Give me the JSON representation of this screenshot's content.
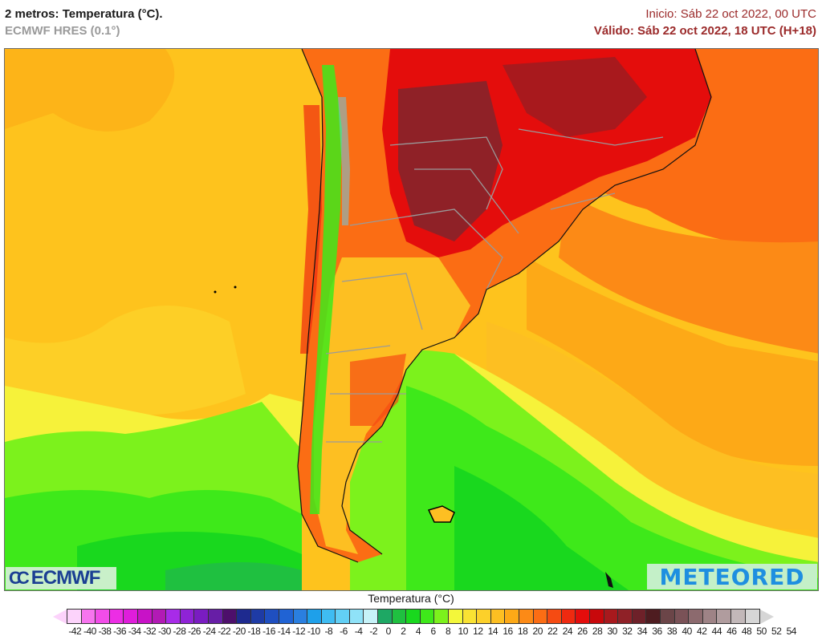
{
  "header": {
    "title": "2 metros: Temperatura (°C).",
    "model": "ECMWF HRES (0.1°)",
    "init": "Inicio: Sáb 22 oct 2022, 00 UTC",
    "valid": "Válido: Sáb 22 oct 2022, 18 UTC (H+18)"
  },
  "map": {
    "region": "South America (southern cone)",
    "variable": "2 m temperature",
    "units": "°C",
    "background_ocean_color": "#ffc21a"
  },
  "logos": {
    "ecmwf_symbol": "CC",
    "ecmwf": "ECMWF",
    "meteored": "METEORED"
  },
  "legend": {
    "title": "Temperatura (°C)",
    "ticks": [
      "-42",
      "-40",
      "-38",
      "-36",
      "-34",
      "-32",
      "-30",
      "-28",
      "-26",
      "-24",
      "-22",
      "-20",
      "-18",
      "-16",
      "-14",
      "-12",
      "-10",
      "-8",
      "-6",
      "-4",
      "-2",
      "0",
      "2",
      "4",
      "6",
      "8",
      "10",
      "12",
      "14",
      "16",
      "18",
      "20",
      "22",
      "24",
      "26",
      "28",
      "30",
      "32",
      "34",
      "36",
      "38",
      "40",
      "42",
      "44",
      "46",
      "48",
      "50",
      "52",
      "54"
    ],
    "colors": [
      "#fcd3fb",
      "#f775ef",
      "#f24de9",
      "#ec2de5",
      "#df1ddb",
      "#c812c7",
      "#b21ab5",
      "#a82be8",
      "#8f23d6",
      "#7a1cc2",
      "#671ea6",
      "#4d0f6b",
      "#1e2a8f",
      "#1e3ba5",
      "#1f4fc0",
      "#2063d4",
      "#2a7fe0",
      "#1ea0ea",
      "#3fbcf2",
      "#62cff5",
      "#8fe2f8",
      "#c6f2f8",
      "#1ea864",
      "#1fc040",
      "#19d81e",
      "#3ee91a",
      "#7cf21c",
      "#f3f73a",
      "#f9e233",
      "#fcd02a",
      "#fdbf22",
      "#fda917",
      "#fc8a16",
      "#fb6d14",
      "#f54b12",
      "#ef2a10",
      "#e40d0c",
      "#c8080b",
      "#a8191d",
      "#8f2127",
      "#6e2129",
      "#4e1c20",
      "#6b4548",
      "#7a5257",
      "#8c6a6e",
      "#9e8386",
      "#b09c9e",
      "#c2b8b9",
      "#d6d6d6"
    ],
    "left_arrow_color": "#fcd3fb",
    "right_arrow_color": "#d6d6d6"
  },
  "chart_data": {
    "type": "heatmap",
    "title": "2 metros: Temperatura (°C).",
    "subtitle": "ECMWF HRES (0.1°)",
    "init_time": "Sáb 22 oct 2022, 00 UTC",
    "valid_time": "Sáb 22 oct 2022, 18 UTC (H+18)",
    "colorbar_label": "Temperatura (°C)",
    "colorbar_range": [
      -42,
      54
    ],
    "colorbar_step": 2,
    "regions_approx": [
      {
        "area": "Paraguay / N Argentina / Chaco",
        "temp_range_c": [
          36,
          40
        ]
      },
      {
        "area": "Central Brazil",
        "temp_range_c": [
          30,
          38
        ]
      },
      {
        "area": "Southern Brazil / Uruguay",
        "temp_range_c": [
          24,
          30
        ]
      },
      {
        "area": "Central Argentina / Patagonia interior",
        "temp_range_c": [
          18,
          26
        ]
      },
      {
        "area": "Pacific Ocean west of Chile",
        "temp_range_c": [
          14,
          20
        ]
      },
      {
        "area": "South Atlantic near Brazil",
        "temp_range_c": [
          20,
          26
        ]
      },
      {
        "area": "Southern ocean / Argentine Sea",
        "temp_range_c": [
          4,
          12
        ]
      },
      {
        "area": "Andes high terrain",
        "temp_range_c": [
          -4,
          10
        ]
      }
    ]
  }
}
